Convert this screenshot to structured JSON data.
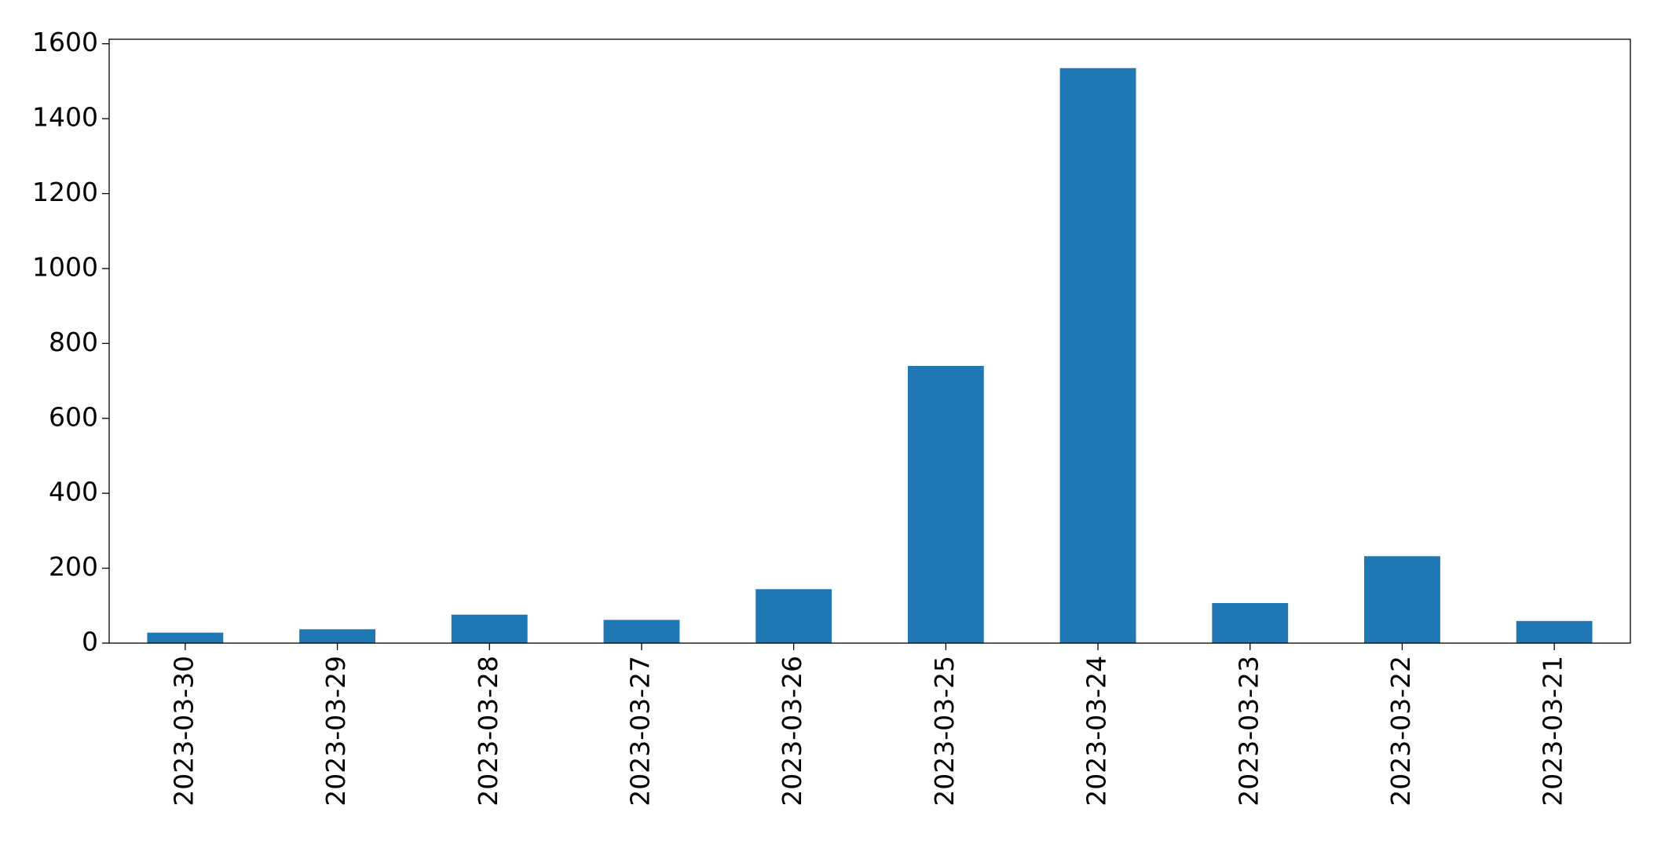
{
  "chart_data": {
    "type": "bar",
    "categories": [
      "2023-03-30",
      "2023-03-29",
      "2023-03-28",
      "2023-03-27",
      "2023-03-26",
      "2023-03-25",
      "2023-03-24",
      "2023-03-23",
      "2023-03-22",
      "2023-03-21"
    ],
    "values": [
      28,
      37,
      76,
      62,
      144,
      740,
      1535,
      107,
      232,
      59
    ],
    "color": "#1f77b4",
    "ylim": [
      0,
      1612
    ],
    "yticks": [
      0,
      200,
      400,
      600,
      800,
      1000,
      1200,
      1400,
      1600
    ],
    "grid": false
  }
}
